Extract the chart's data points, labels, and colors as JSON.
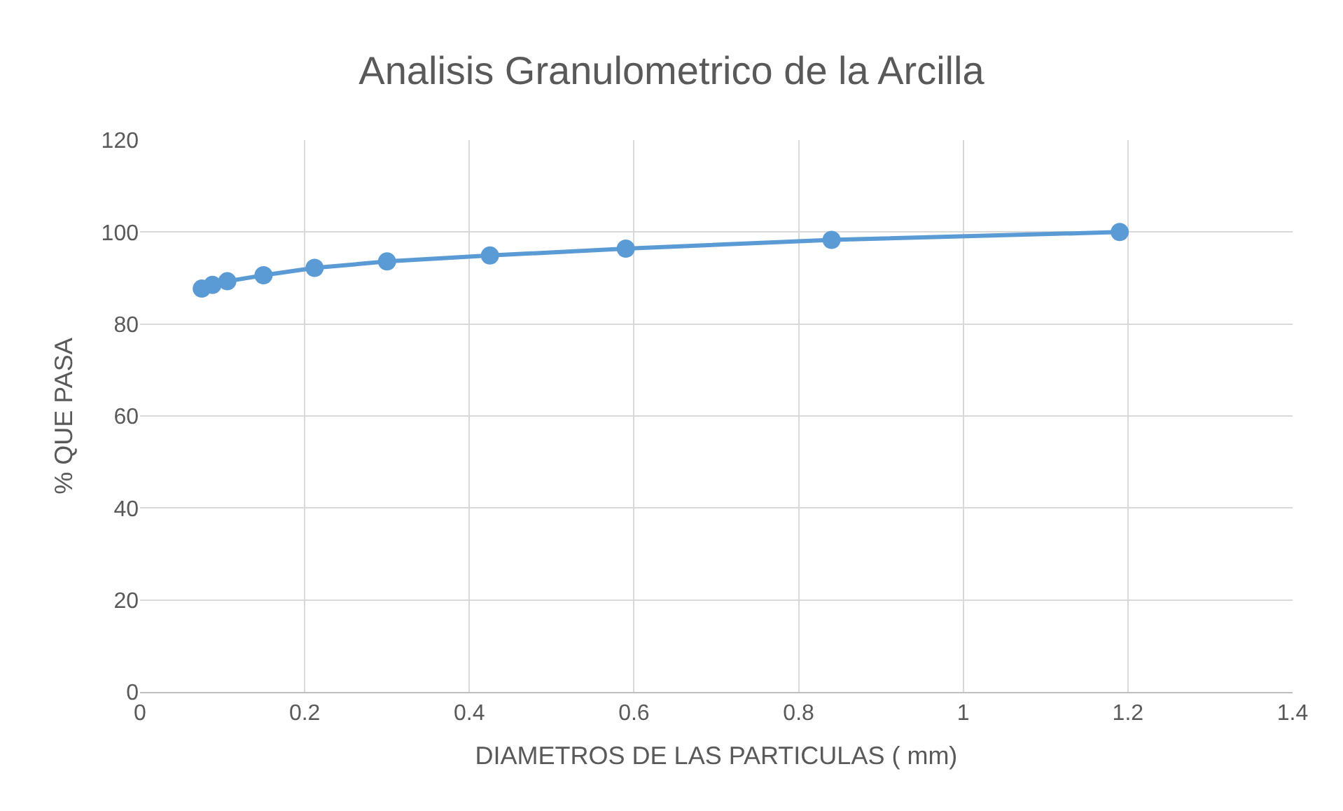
{
  "chart_data": {
    "type": "line",
    "title": "Analisis Granulometrico de la Arcilla",
    "xlabel": "DIAMETROS DE LAS PARTICULAS ( mm)",
    "ylabel": "% QUE PASA",
    "x": [
      0.075,
      0.088,
      0.106,
      0.15,
      0.212,
      0.3,
      0.425,
      0.59,
      0.84,
      1.19
    ],
    "series": [
      {
        "color": "#5b9bd5",
        "values": [
          87.7,
          88.5,
          89.3,
          90.6,
          92.2,
          93.6,
          94.9,
          96.4,
          98.3,
          100
        ]
      }
    ],
    "xlim": [
      0,
      1.4
    ],
    "xticks": [
      0,
      0.2,
      0.4,
      0.6,
      0.8,
      1,
      1.2,
      1.4
    ],
    "ylim": [
      0,
      120
    ],
    "yticks": [
      0,
      20,
      40,
      60,
      80,
      100,
      120
    ],
    "grid": true,
    "marker": "circle",
    "line_style": "solid",
    "legend": false
  }
}
